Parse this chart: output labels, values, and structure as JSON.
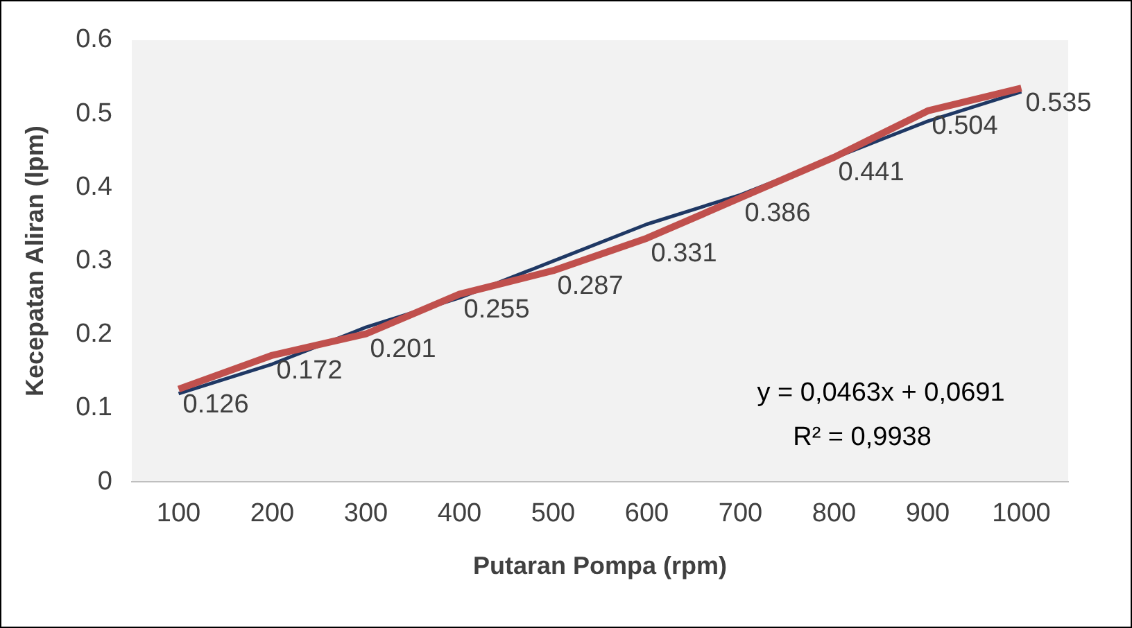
{
  "chart_data": {
    "type": "line",
    "xlabel": "Putaran Pompa (rpm)",
    "ylabel": "Kecepatan Aliran (lpm)",
    "categories": [
      "100",
      "200",
      "300",
      "400",
      "500",
      "600",
      "700",
      "800",
      "900",
      "1000"
    ],
    "series": [
      {
        "color": "#c0504d",
        "values": [
          0.126,
          0.172,
          0.201,
          0.255,
          0.287,
          0.331,
          0.386,
          0.441,
          0.504,
          0.535
        ],
        "data_labels": true
      },
      {
        "type": "line",
        "color": "#1f3864",
        "values": [
          0.12,
          0.16,
          0.21,
          0.25,
          0.3,
          0.35,
          0.39,
          0.44,
          0.49,
          0.53
        ]
      }
    ],
    "ylim": [
      0,
      0.6
    ],
    "yticks": [
      0,
      0.1,
      0.2,
      0.3,
      0.4,
      0.5,
      0.6
    ],
    "grid": false,
    "legend": false,
    "marker": "none",
    "annotations": [
      "y = 0,0463x + 0,0691",
      "R² = 0,9938"
    ]
  }
}
